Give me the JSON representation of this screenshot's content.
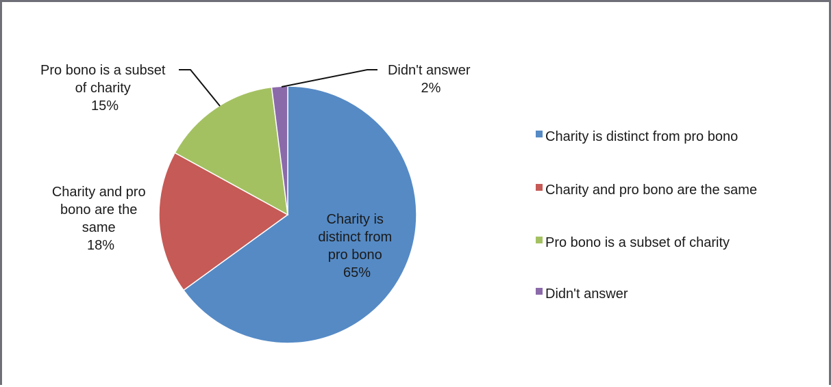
{
  "chart_data": {
    "type": "pie",
    "title": "",
    "slices": [
      {
        "name": "Charity is distinct from pro bono",
        "value": 65,
        "color": "#558ac5",
        "label_lines": [
          "Charity is",
          "distinct from",
          "pro bono",
          "65%"
        ]
      },
      {
        "name": "Charity and pro bono are the same",
        "value": 18,
        "color": "#c65a56",
        "label_lines": [
          "Charity and pro",
          "bono are the",
          "same",
          "18%"
        ]
      },
      {
        "name": "Pro bono is a subset of charity",
        "value": 15,
        "color": "#a4c162",
        "label_lines": [
          "Pro bono is a subset",
          "of charity",
          "15%"
        ]
      },
      {
        "name": "Didn't answer",
        "value": 2,
        "color": "#8b6aaa",
        "label_lines": [
          "Didn't answer",
          "2%"
        ]
      }
    ],
    "legend": {
      "position": "right",
      "entries": [
        "Charity is distinct from pro bono",
        "Charity and pro bono are the same",
        "Pro bono is a subset of charity",
        "Didn't answer"
      ]
    }
  }
}
